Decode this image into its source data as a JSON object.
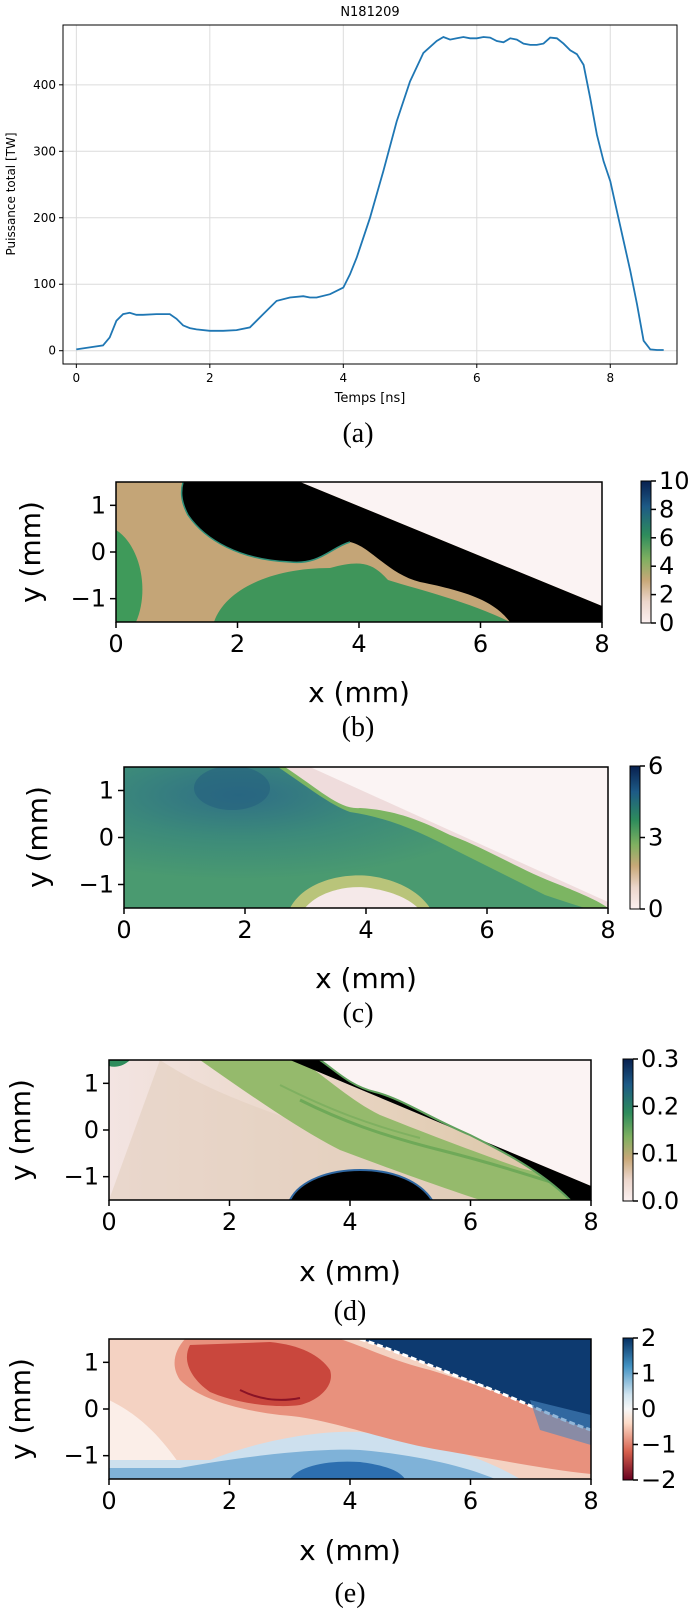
{
  "chart_data": [
    {
      "panel": "a",
      "type": "line",
      "title": "N181209",
      "xlabel": "Temps [ns]",
      "ylabel": "Puissance total [TW]",
      "xlim": [
        -0.2,
        9.0
      ],
      "ylim": [
        -20,
        490
      ],
      "xticks": [
        "0",
        "2",
        "4",
        "6",
        "8"
      ],
      "yticks": [
        "0",
        "100",
        "200",
        "300",
        "400"
      ],
      "grid": true,
      "caption": "(a)",
      "color": "#1f77b4",
      "x": [
        0.0,
        0.2,
        0.4,
        0.5,
        0.6,
        0.7,
        0.8,
        0.9,
        1.0,
        1.2,
        1.4,
        1.5,
        1.6,
        1.7,
        1.8,
        2.0,
        2.2,
        2.4,
        2.6,
        2.8,
        3.0,
        3.2,
        3.4,
        3.5,
        3.6,
        3.8,
        4.0,
        4.1,
        4.2,
        4.4,
        4.6,
        4.8,
        5.0,
        5.2,
        5.4,
        5.5,
        5.6,
        5.7,
        5.8,
        5.9,
        6.0,
        6.1,
        6.2,
        6.3,
        6.4,
        6.5,
        6.6,
        6.7,
        6.8,
        6.9,
        7.0,
        7.1,
        7.2,
        7.3,
        7.4,
        7.5,
        7.6,
        7.7,
        7.8,
        7.9,
        8.0,
        8.1,
        8.2,
        8.3,
        8.4,
        8.5,
        8.6,
        8.7,
        8.8
      ],
      "y": [
        2,
        5,
        8,
        20,
        45,
        55,
        57,
        54,
        54,
        55,
        55,
        48,
        38,
        34,
        32,
        30,
        30,
        31,
        35,
        55,
        75,
        80,
        82,
        80,
        80,
        85,
        95,
        115,
        140,
        200,
        270,
        345,
        405,
        448,
        466,
        472,
        468,
        470,
        472,
        470,
        470,
        472,
        471,
        466,
        464,
        470,
        468,
        462,
        460,
        460,
        462,
        471,
        470,
        462,
        452,
        446,
        430,
        380,
        325,
        285,
        255,
        210,
        165,
        120,
        70,
        15,
        2,
        1,
        1
      ]
    },
    {
      "panel": "b",
      "type": "heatmap",
      "xlabel": "x (mm)",
      "ylabel": "y (mm)",
      "xlim": [
        0,
        8
      ],
      "ylim": [
        -1.5,
        1.5
      ],
      "xticks": [
        "0",
        "2",
        "4",
        "6",
        "8"
      ],
      "yticks": [
        "1",
        "0",
        "−1"
      ],
      "colorbar_ticks": [
        "10",
        "8",
        "6",
        "4",
        "2",
        "0"
      ],
      "colorbar_range": [
        0,
        10
      ],
      "colormap": [
        "#fbf0f0",
        "#ecd6cc",
        "#c8a878",
        "#7fb060",
        "#2e8c5c",
        "#1d5a86",
        "#08204f"
      ],
      "caption": "(b)"
    },
    {
      "panel": "c",
      "type": "heatmap",
      "xlabel": "x (mm)",
      "ylabel": "y (mm)",
      "xlim": [
        0,
        8
      ],
      "ylim": [
        -1.5,
        1.5
      ],
      "xticks": [
        "0",
        "2",
        "4",
        "6",
        "8"
      ],
      "yticks": [
        "1",
        "0",
        "−1"
      ],
      "colorbar_ticks": [
        "6",
        "3",
        "0"
      ],
      "colorbar_range": [
        0,
        6
      ],
      "colormap": [
        "#fbf0f0",
        "#ecd6cc",
        "#c8a878",
        "#7fb060",
        "#2e8c5c",
        "#1d5a86",
        "#08204f"
      ],
      "caption": "(c)"
    },
    {
      "panel": "d",
      "type": "heatmap",
      "xlabel": "x (mm)",
      "ylabel": "y (mm)",
      "xlim": [
        0,
        8
      ],
      "ylim": [
        -1.5,
        1.5
      ],
      "xticks": [
        "0",
        "2",
        "4",
        "6",
        "8"
      ],
      "yticks": [
        "1",
        "0",
        "−1"
      ],
      "colorbar_ticks": [
        "0.3",
        "0.2",
        "0.1",
        "0.0"
      ],
      "colorbar_range": [
        0,
        0.3
      ],
      "colormap": [
        "#fbf0f0",
        "#ecd6cc",
        "#c8a878",
        "#7fb060",
        "#2e8c5c",
        "#1d5a86",
        "#08204f"
      ],
      "caption": "(d)"
    },
    {
      "panel": "e",
      "type": "heatmap",
      "xlabel": "x (mm)",
      "ylabel": "y (mm)",
      "xlim": [
        0,
        8
      ],
      "ylim": [
        -1.5,
        1.5
      ],
      "xticks": [
        "0",
        "2",
        "4",
        "6",
        "8"
      ],
      "yticks": [
        "1",
        "0",
        "−1"
      ],
      "colorbar_ticks": [
        "2",
        "1",
        "0",
        "−1",
        "−2"
      ],
      "colorbar_range": [
        -2,
        2
      ],
      "colormap": [
        "#67001f",
        "#d6604d",
        "#fddbc7",
        "#f7f7f7",
        "#d1e5f0",
        "#4393c3",
        "#053061"
      ],
      "caption": "(e)"
    }
  ]
}
